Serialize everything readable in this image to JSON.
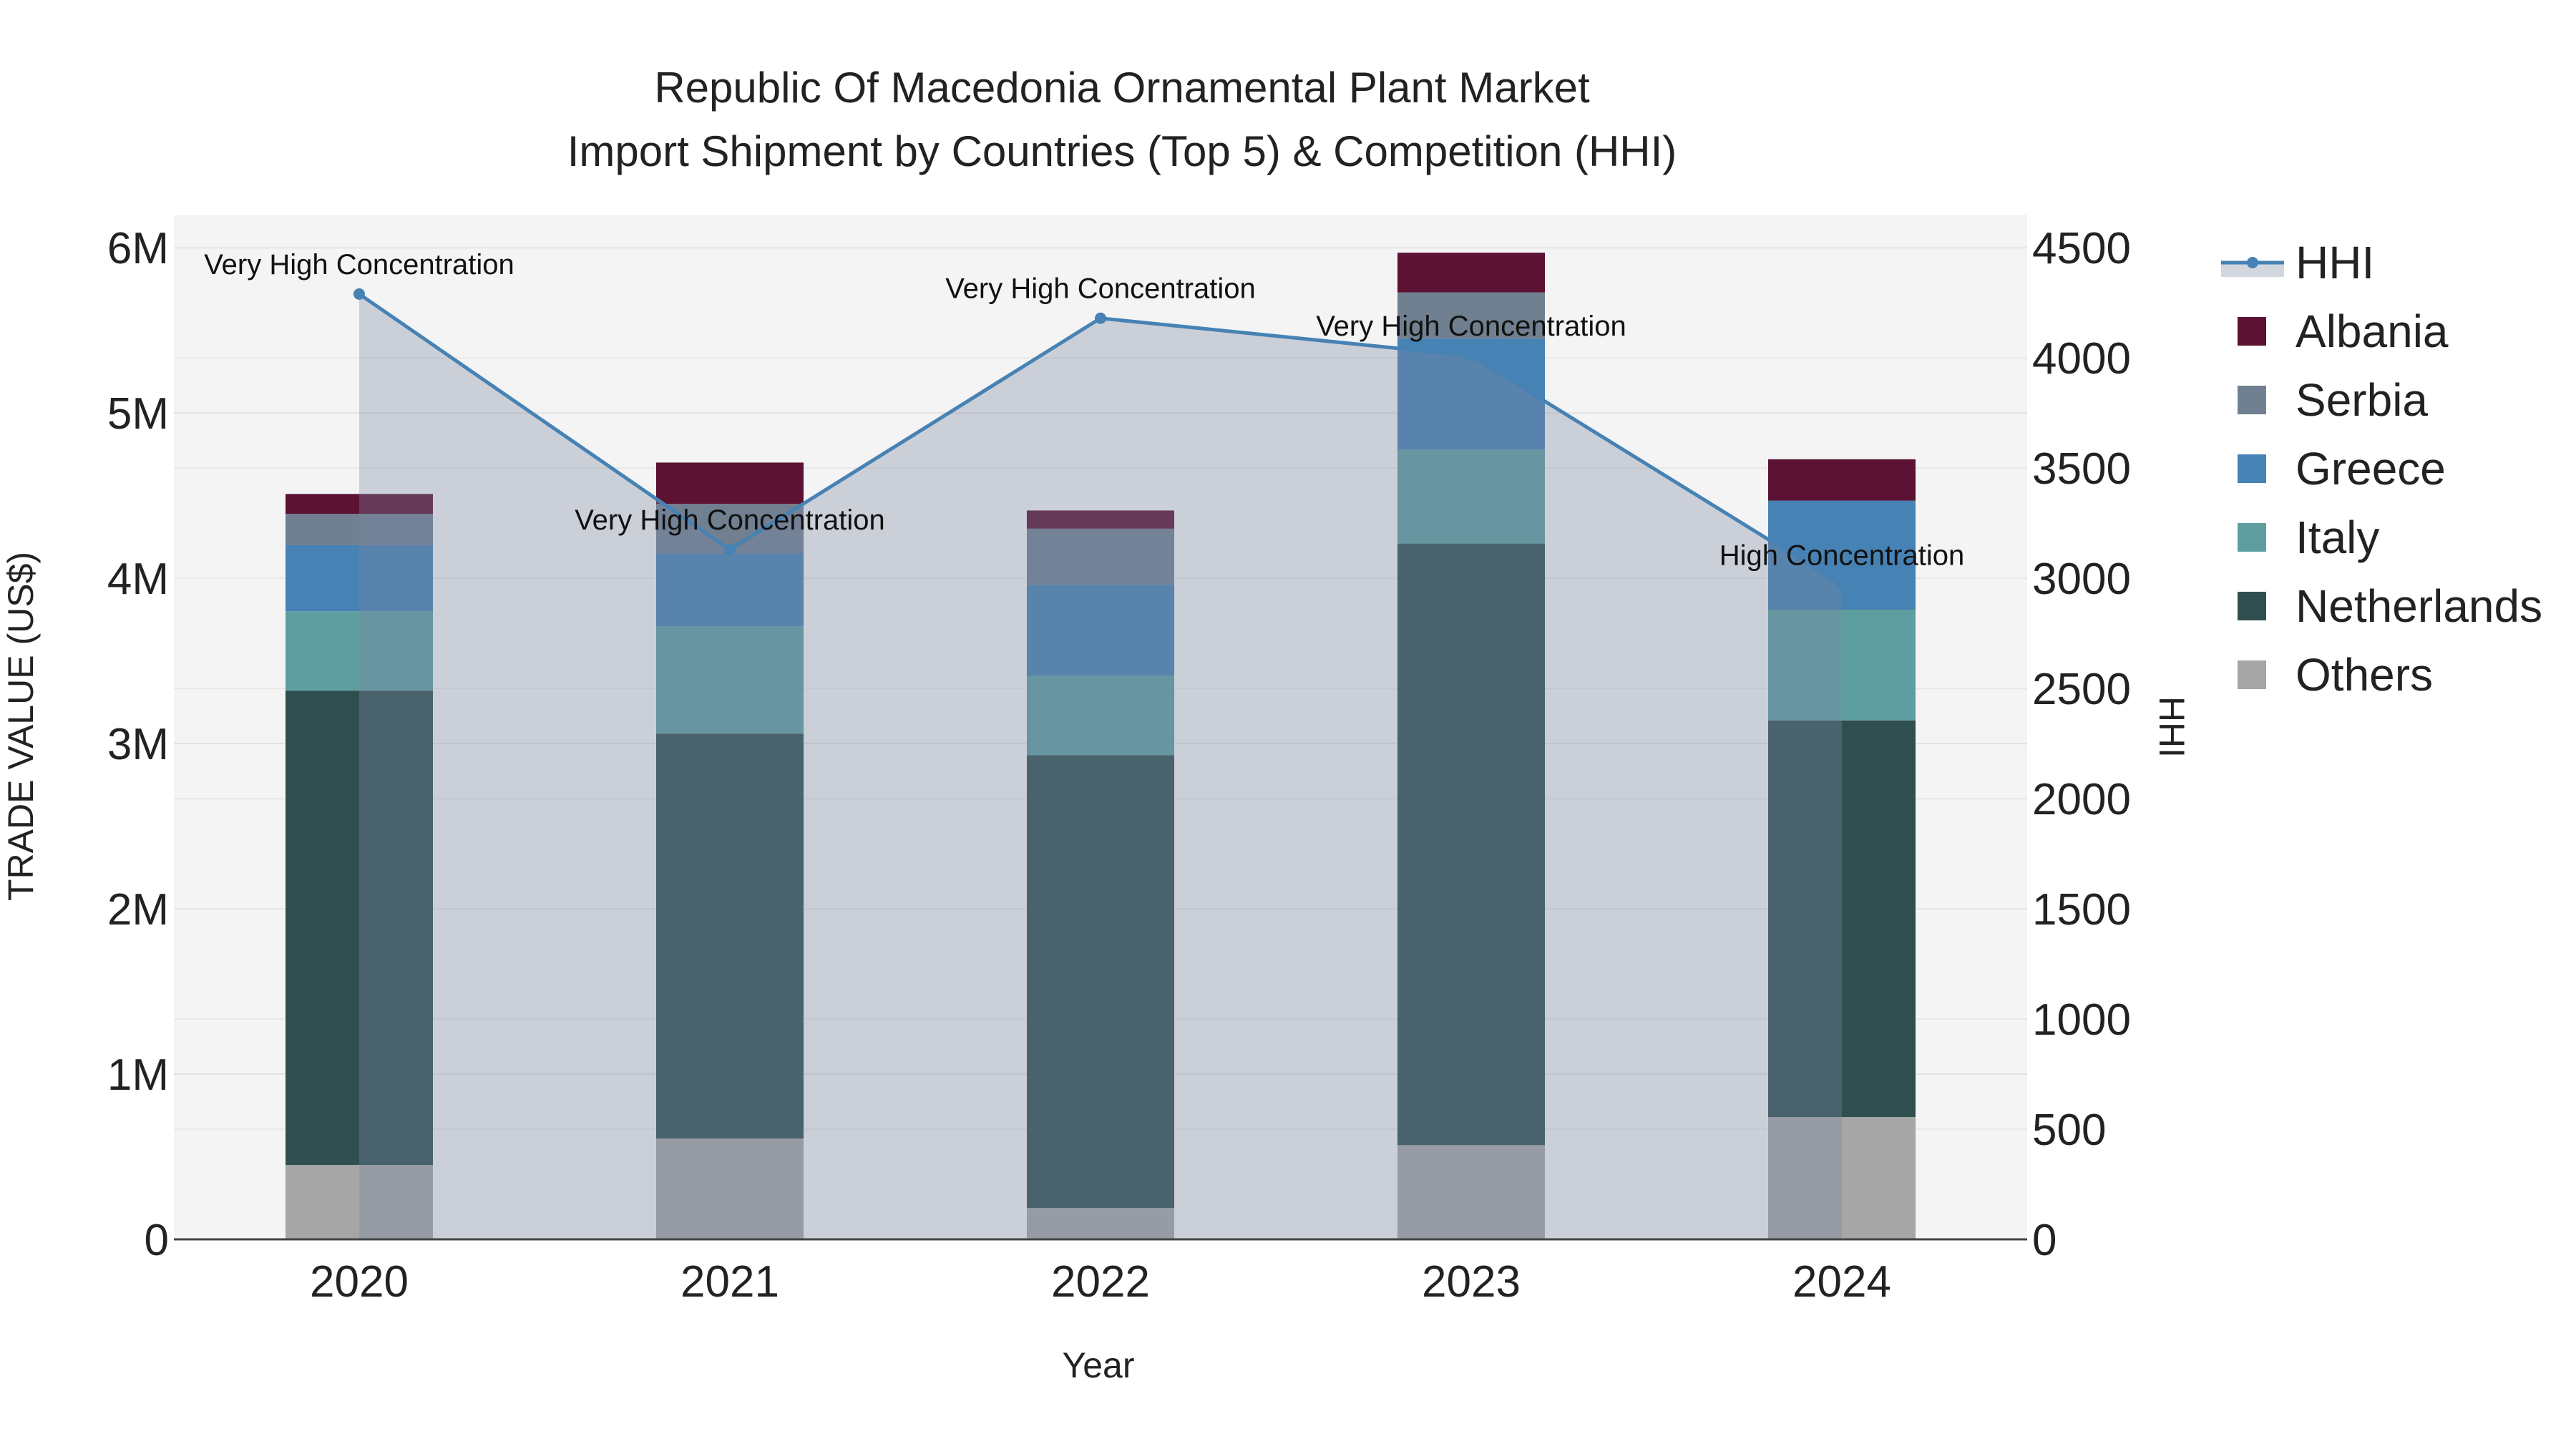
{
  "chart_data": {
    "type": "bar",
    "title_line1": "Republic Of Macedonia Ornamental Plant Market",
    "title_line2": "Import Shipment by Countries (Top 5) & Competition (HHI)",
    "xlabel": "Year",
    "ylabel": "TRADE VALUE (US$)",
    "y2label": "HHI",
    "categories": [
      "2020",
      "2021",
      "2022",
      "2023",
      "2024"
    ],
    "ylim": [
      0,
      6200000
    ],
    "y2lim": [
      0,
      4650
    ],
    "yticks": [
      {
        "value": 0,
        "label": "0"
      },
      {
        "value": 1000000,
        "label": "1M"
      },
      {
        "value": 2000000,
        "label": "2M"
      },
      {
        "value": 3000000,
        "label": "3M"
      },
      {
        "value": 4000000,
        "label": "4M"
      },
      {
        "value": 5000000,
        "label": "5M"
      },
      {
        "value": 6000000,
        "label": "6M"
      }
    ],
    "y2ticks": [
      {
        "value": 0,
        "label": "0"
      },
      {
        "value": 500,
        "label": "500"
      },
      {
        "value": 1000,
        "label": "1000"
      },
      {
        "value": 1500,
        "label": "1500"
      },
      {
        "value": 2000,
        "label": "2000"
      },
      {
        "value": 2500,
        "label": "2500"
      },
      {
        "value": 3000,
        "label": "3000"
      },
      {
        "value": 3500,
        "label": "3500"
      },
      {
        "value": 4000,
        "label": "4000"
      },
      {
        "value": 4500,
        "label": "4500"
      }
    ],
    "series": [
      {
        "name": "Others",
        "color": "#a6a6a6",
        "values": [
          450000,
          610000,
          190000,
          570000,
          740000
        ]
      },
      {
        "name": "Netherlands",
        "color": "#2f4f4f",
        "values": [
          2870000,
          2450000,
          2740000,
          3640000,
          2400000
        ]
      },
      {
        "name": "Italy",
        "color": "#5f9ea0",
        "values": [
          480000,
          650000,
          480000,
          570000,
          670000
        ]
      },
      {
        "name": "Greece",
        "color": "#4682b4",
        "values": [
          400000,
          440000,
          550000,
          670000,
          660000
        ]
      },
      {
        "name": "Serbia",
        "color": "#708090",
        "values": [
          190000,
          300000,
          340000,
          280000,
          0
        ]
      },
      {
        "name": "Albania",
        "color": "#5c1233",
        "values": [
          120000,
          250000,
          110000,
          240000,
          250000
        ]
      }
    ],
    "hhi": {
      "name": "HHI",
      "color": "#4682b4",
      "values": [
        4290,
        3130,
        4180,
        4010,
        2970
      ],
      "annotations": [
        "Very High Concentration",
        "Very High Concentration",
        "Very High Concentration",
        "Very High Concentration",
        "High Concentration"
      ]
    },
    "legend_order": [
      "HHI",
      "Albania",
      "Serbia",
      "Greece",
      "Italy",
      "Netherlands",
      "Others"
    ],
    "legend_position": "right",
    "grid": true
  }
}
